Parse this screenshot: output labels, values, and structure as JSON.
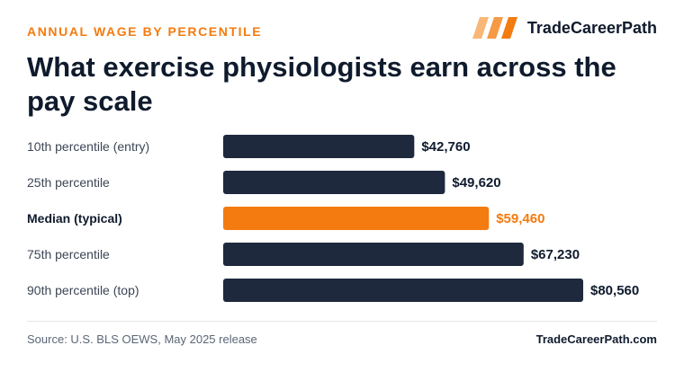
{
  "header": {
    "eyebrow": "ANNUAL WAGE BY PERCENTILE",
    "brand_name": "TradeCareerPath",
    "title": "What exercise physiologists earn across the pay scale"
  },
  "footer": {
    "source": "Source: U.S. BLS OEWS, May 2025 release",
    "site": "TradeCareerPath.com"
  },
  "colors": {
    "accent": "#f47b0f",
    "bar": "#1e293d",
    "text": "#0f1b2d",
    "label": "#3c4656"
  },
  "chart_data": {
    "type": "bar",
    "orientation": "horizontal",
    "categories": [
      "10th percentile (entry)",
      "25th percentile",
      "Median (typical)",
      "75th percentile",
      "90th percentile (top)"
    ],
    "values": [
      42760,
      49620,
      59460,
      67230,
      80560
    ],
    "value_labels": [
      "$42,760",
      "$49,620",
      "$59,460",
      "$67,230",
      "$80,560"
    ],
    "highlight_index": 2,
    "xlim": [
      0,
      80560
    ],
    "grid": false,
    "legend": "none"
  }
}
